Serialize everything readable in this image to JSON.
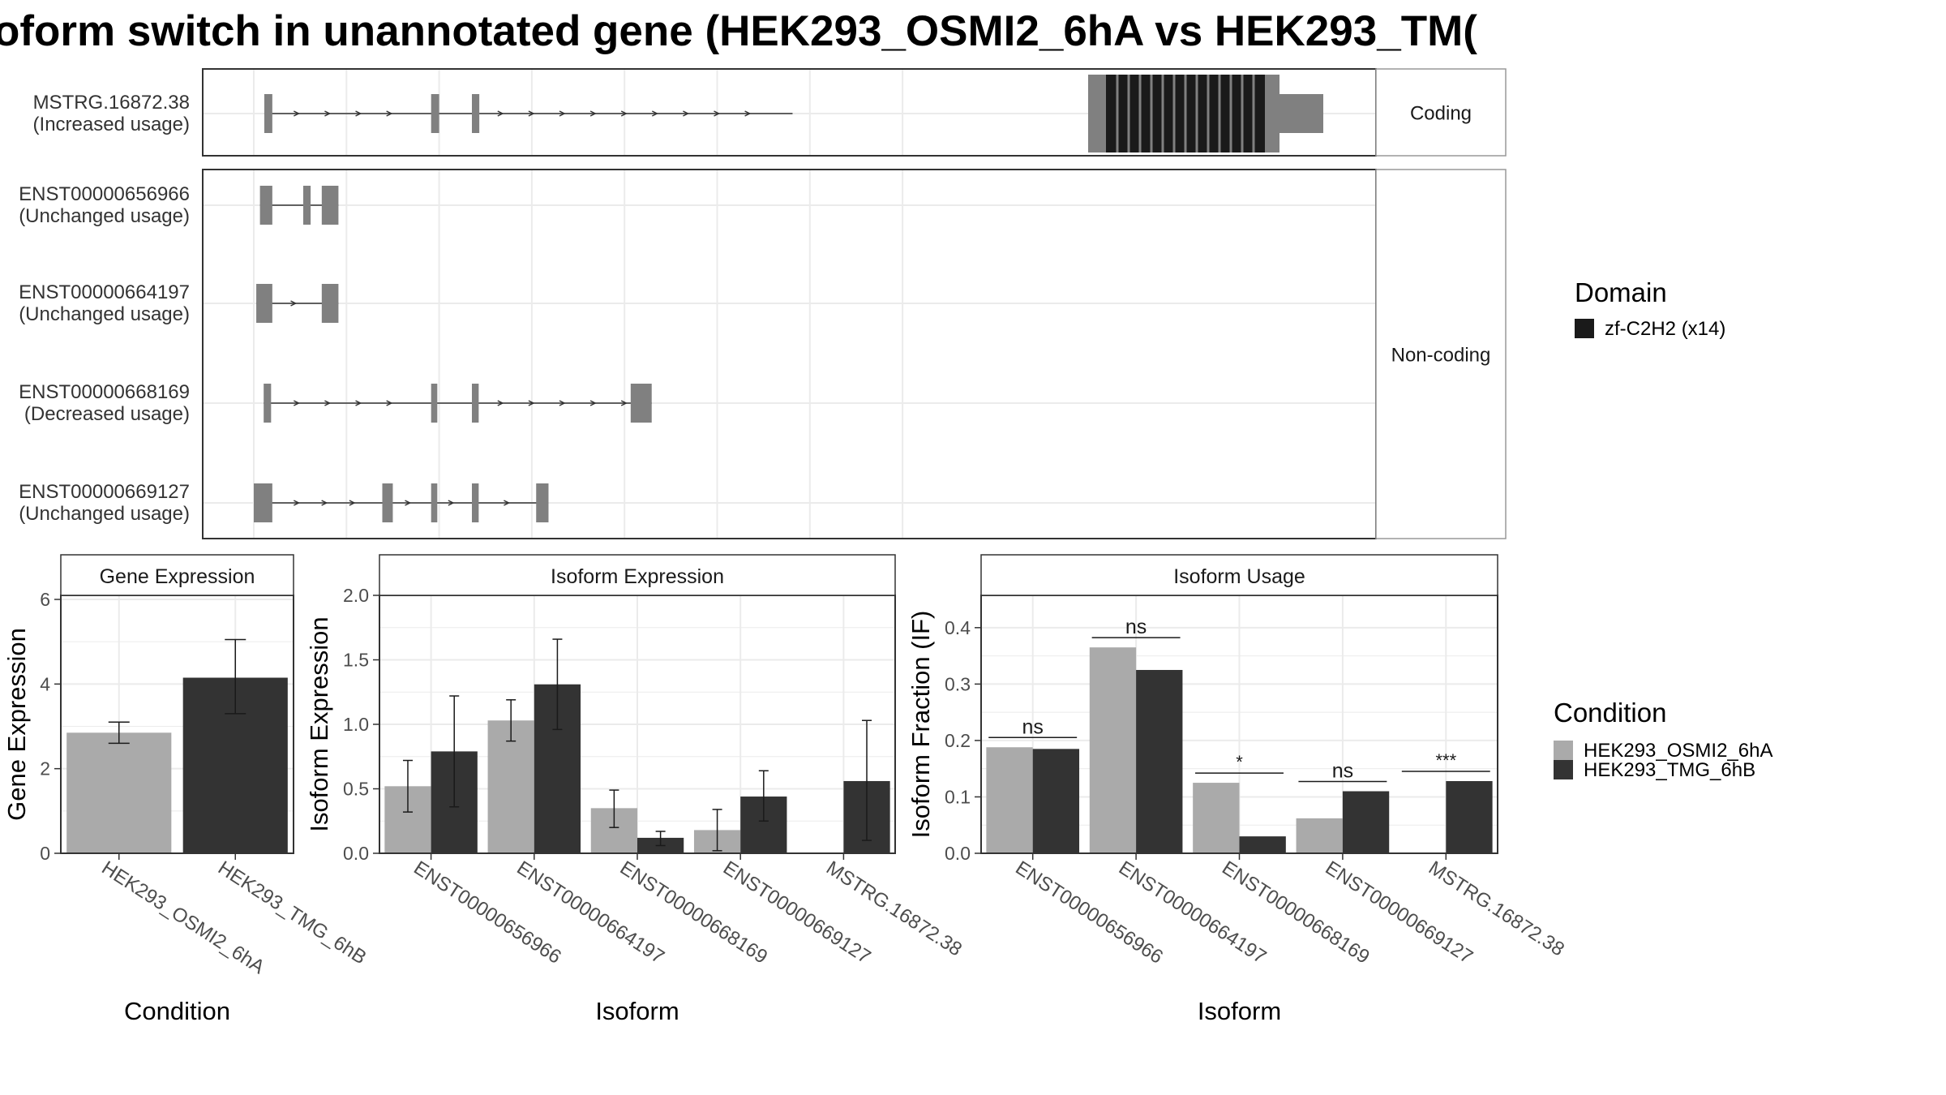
{
  "title": "oform switch in unannotated gene (HEK293_OSMI2_6hA vs HEK293_TM(",
  "colors": {
    "exon": "#808080",
    "domain": "#1a1a1a",
    "cond_a": "#aaaaaa",
    "cond_b": "#333333",
    "grid": "#ebebeb",
    "panel_border": "#333333",
    "strip_bg": "#ffffff",
    "strip_border": "#999999"
  },
  "chart_data": [
    {
      "type": "gene-structure",
      "legend": {
        "title": "Domain",
        "entries": [
          {
            "label": "zf-C2H2 (x14)",
            "color": "#1a1a1a"
          }
        ]
      },
      "facets": [
        {
          "label": "Coding",
          "isoforms": [
            {
              "name": "MSTRG.16872.38",
              "usage": "(Increased usage)"
            }
          ]
        },
        {
          "label": "Non-coding",
          "isoforms": [
            {
              "name": "ENST00000656966",
              "usage": "(Unchanged usage)"
            },
            {
              "name": "ENST00000664197",
              "usage": "(Unchanged usage)"
            },
            {
              "name": "ENST00000668169",
              "usage": "(Decreased usage)"
            },
            {
              "name": "ENST00000669127",
              "usage": "(Unchanged usage)"
            }
          ]
        }
      ]
    },
    {
      "type": "bar",
      "title": "Gene Expression",
      "xlabel": "Condition",
      "ylabel": "Gene Expression",
      "ylim": [
        0,
        6
      ],
      "yticks": [
        "0",
        "2",
        "4",
        "6"
      ],
      "categories": [
        "HEK293_OSMI2_6hA",
        "HEK293_TMG_6hB"
      ],
      "values": [
        2.85,
        4.15
      ],
      "errors": [
        [
          2.6,
          3.1
        ],
        [
          3.3,
          5.05
        ]
      ]
    },
    {
      "type": "bar",
      "title": "Isoform Expression",
      "xlabel": "Isoform",
      "ylabel": "Isoform Expression",
      "ylim": [
        0,
        2.0
      ],
      "yticks": [
        "0.0",
        "0.5",
        "1.0",
        "1.5",
        "2.0"
      ],
      "categories": [
        "ENST00000656966",
        "ENST00000664197",
        "ENST00000668169",
        "ENST00000669127",
        "MSTRG.16872.38"
      ],
      "series": [
        {
          "name": "HEK293_OSMI2_6hA",
          "values": [
            0.52,
            1.03,
            0.35,
            0.18,
            0.0
          ],
          "errors": [
            [
              0.32,
              0.72
            ],
            [
              0.87,
              1.19
            ],
            [
              0.2,
              0.49
            ],
            [
              0.02,
              0.34
            ],
            [
              0.0,
              0.0
            ]
          ]
        },
        {
          "name": "HEK293_TMG_6hB",
          "values": [
            0.79,
            1.31,
            0.12,
            0.44,
            0.56
          ],
          "errors": [
            [
              0.36,
              1.22
            ],
            [
              0.96,
              1.66
            ],
            [
              0.06,
              0.17
            ],
            [
              0.25,
              0.64
            ],
            [
              0.1,
              1.03
            ]
          ]
        }
      ]
    },
    {
      "type": "bar",
      "title": "Isoform Usage",
      "xlabel": "Isoform",
      "ylabel": "Isoform Fraction (IF)",
      "ylim": [
        0,
        0.44
      ],
      "yticks": [
        "0.0",
        "0.1",
        "0.2",
        "0.3",
        "0.4"
      ],
      "categories": [
        "ENST00000656966",
        "ENST00000664197",
        "ENST00000668169",
        "ENST00000669127",
        "MSTRG.16872.38"
      ],
      "series": [
        {
          "name": "HEK293_OSMI2_6hA",
          "values": [
            0.188,
            0.365,
            0.125,
            0.062,
            0.0
          ]
        },
        {
          "name": "HEK293_TMG_6hB",
          "values": [
            0.185,
            0.325,
            0.03,
            0.11,
            0.128
          ]
        }
      ],
      "significance": [
        "ns",
        "ns",
        "*",
        "ns",
        "***"
      ],
      "legend": {
        "title": "Condition",
        "entries": [
          "HEK293_OSMI2_6hA",
          "HEK293_TMG_6hB"
        ]
      }
    }
  ]
}
